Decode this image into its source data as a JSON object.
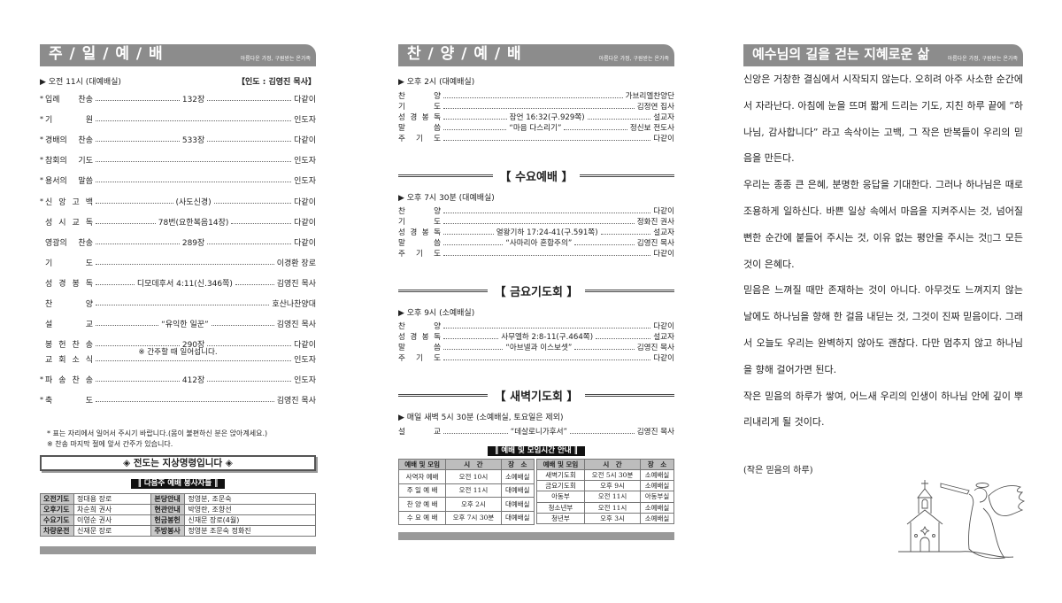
{
  "sunday": {
    "title": "주 / 일 / 예 / 배",
    "subtitle": "아름다운 가정, 구원받는 온가족",
    "time": "▶ 오전 11시 (대예배실)",
    "leader": "【인도 : 김영진 목사】",
    "items": [
      {
        "star": true,
        "label": "입례 찬송",
        "mid": "132장",
        "right": "다같이"
      },
      {
        "star": true,
        "label": "기 원",
        "mid": "",
        "right": "인도자"
      },
      {
        "star": true,
        "label": "경배의 찬송",
        "mid": "533장",
        "right": "다같이"
      },
      {
        "star": true,
        "label": "참회의 기도",
        "mid": "",
        "right": "인도자"
      },
      {
        "star": true,
        "label": "용서의 말씀",
        "mid": "",
        "right": "인도자"
      },
      {
        "star": true,
        "label": "신 앙 고 백",
        "mid": "(사도신경)",
        "right": "다같이"
      },
      {
        "star": false,
        "label": "성 시 교 독",
        "mid": "78번(요한복음14장)",
        "right": "다같이"
      },
      {
        "star": false,
        "label": "영광의 찬송",
        "mid": "289장",
        "right": "다같이"
      },
      {
        "star": false,
        "label": "기 도",
        "mid": "",
        "right": "이경환 장로"
      },
      {
        "star": false,
        "label": "성 경 봉 독",
        "mid": "디모데후서 4:11(신.346쪽)",
        "right": "김영진 목사"
      },
      {
        "star": false,
        "label": "찬 양",
        "mid": "",
        "right": "호산나찬양대"
      },
      {
        "star": false,
        "label": "설 교",
        "mid": "“유익한 일꾼”",
        "right": "김영진 목사"
      },
      {
        "star": false,
        "label": "봉 헌 찬 송",
        "mid": "290장",
        "right": "다같이"
      },
      {
        "star": false,
        "label": "교 회 소 식",
        "mid": "",
        "right": "인도자"
      },
      {
        "star": true,
        "label": "파 송 찬 송",
        "mid": "412장",
        "right": "인도자"
      },
      {
        "star": true,
        "label": "축 도",
        "mid": "",
        "right": "김영진 목사"
      }
    ],
    "offering_note": "※ 간주할 때 일어섭니다.",
    "footnotes": [
      "* 표는 자리에서 일어서 주시기 바랍니다.(몸이 불편하신 분은 앉아계세요.)",
      "※ 찬송 마지막 절에 앞서 간주가 있습니다."
    ],
    "banner": "◈ 전도는  지상명령입니다 ◈",
    "servants_title": "‖ 다음주 예배 봉사자들 ‖",
    "servants": [
      [
        "오전기도",
        "정대용 장로",
        "본당안내",
        "정영분, 조문숙"
      ],
      [
        "오후기도",
        "차순희 권사",
        "현관안내",
        "박영란, 조향선"
      ],
      [
        "수요기도",
        "이영순 권사",
        "헌금봉헌",
        "신재문 장로(4월)"
      ],
      [
        "차량운전",
        "신재문 장로",
        "주방봉사",
        "정영분 조문숙 정화진"
      ]
    ]
  },
  "praise": {
    "title": "찬 / 양 / 예 / 배",
    "subtitle": "아름다운 가정, 구원받는 온가족",
    "time": "▶ 오후 2시 (대예배실)",
    "items": [
      {
        "label": "찬 양",
        "mid": "",
        "right": "가브리엘찬양단"
      },
      {
        "label": "기 도",
        "mid": "",
        "right": "김정연 집사"
      },
      {
        "label": "성 경 봉 독",
        "mid": "잠언 16:32(구.929쪽)",
        "right": "설교자"
      },
      {
        "label": "말 씀",
        "mid": "“마음 다스리기”",
        "right": "정신보 전도사"
      },
      {
        "label": "주 기 도",
        "mid": "",
        "right": "다같이"
      }
    ]
  },
  "wednesday": {
    "title": "【 수요예배 】",
    "time": "▶ 오후 7시 30분 (대예배실)",
    "items": [
      {
        "label": "찬 양",
        "mid": "",
        "right": "다같이"
      },
      {
        "label": "기 도",
        "mid": "",
        "right": "정화진 권사"
      },
      {
        "label": "성 경 봉 독",
        "mid": "열왕기하 17:24-41(구.591쪽)",
        "right": "설교자"
      },
      {
        "label": "말 씀",
        "mid": "“사마리아 혼합주의”",
        "right": "김영진 목사"
      },
      {
        "label": "주 기 도",
        "mid": "",
        "right": "다같이"
      }
    ]
  },
  "friday": {
    "title": "【 금요기도회 】",
    "time": "▶ 오후 9시 (소예배실)",
    "items": [
      {
        "label": "찬 양",
        "mid": "",
        "right": "다같이"
      },
      {
        "label": "성 경 봉 독",
        "mid": "사무엘하 2:8-11(구.464쪽)",
        "right": "설교자"
      },
      {
        "label": "말 씀",
        "mid": "“아브넬과 이스보셋”",
        "right": "김영진 목사"
      },
      {
        "label": "주 기 도",
        "mid": "",
        "right": "다같이"
      }
    ]
  },
  "dawn": {
    "title": "【 새벽기도회 】",
    "time": "▶ 매일 새벽  5시 30분 (소예배실, 토요일은 제외)",
    "items": [
      {
        "label": "설 교",
        "mid": "“데살로니가후서”",
        "right": "김영진 목사"
      }
    ]
  },
  "schedule": {
    "title": "‖ 예배 및 모임시간 안내 ‖",
    "headers": [
      "예배 및 모임",
      "시　간",
      "장　소"
    ],
    "left": [
      [
        "사역자 예배",
        "오전 10시",
        "소예배실"
      ],
      [
        "주 일 예 배",
        "오전 11시",
        "대예배실"
      ],
      [
        "찬 양 예 배",
        "오후 2시",
        "대예배실"
      ],
      [
        "수 요 예 배",
        "오후 7시 30분",
        "대예배실"
      ]
    ],
    "right": [
      [
        "새벽기도회",
        "오전 5시 30분",
        "소예배실"
      ],
      [
        "금요기도회",
        "오후 9시",
        "소예배실"
      ],
      [
        "아동부",
        "오전 11시",
        "아동부실"
      ],
      [
        "청소년부",
        "오전 11시",
        "소예배실"
      ],
      [
        "청년부",
        "오후 3시",
        "소예배실"
      ]
    ]
  },
  "essay": {
    "title": "예수님의 길을 걷는 지혜로운 삶",
    "subtitle": "아름다운 가정, 구원받는 온가족",
    "paragraphs": [
      "신앙은 거창한 결심에서 시작되지 않는다. 오히려 아주 사소한 순간에서 자라난다. 아침에 눈을 뜨며 짧게 드리는 기도, 지친 하루 끝에 “하나님, 감사합니다” 라고 속삭이는 고백, 그 작은 반복들이 우리의 믿음을 만든다.",
      "우리는 종종 큰 은혜, 분명한 응답을 기대한다. 그러나 하나님은 때로 조용하게 일하신다. 바쁜 일상 속에서 마음을 지켜주시는 것, 넘어질 뻔한 순간에 붙들어 주시는 것, 이유 없는 평안을 주시는 것▯그 모든 것이 은혜다.",
      "믿음은 느껴질 때만 존재하는 것이 아니다. 아무것도 느껴지지 않는 날에도 하나님을 향해 한 걸음 내딛는 것, 그것이 진짜 믿음이다. 그래서 오늘도 우리는 완벽하지 않아도 괜찮다. 다만 멈추지 않고 하나님을 향해 걸어가면 된다.",
      "작은 믿음의 하루가 쌓여, 어느새 우리의 인생이 하나님 안에 깊이 뿌리내리게 될 것이다."
    ],
    "citation": "(작은 믿음의 하루)",
    "illustration": "church-and-angel"
  },
  "colors": {
    "header_bg": "#8c8c8c",
    "table_header": "#c8c8c8",
    "bar": "#999999"
  }
}
